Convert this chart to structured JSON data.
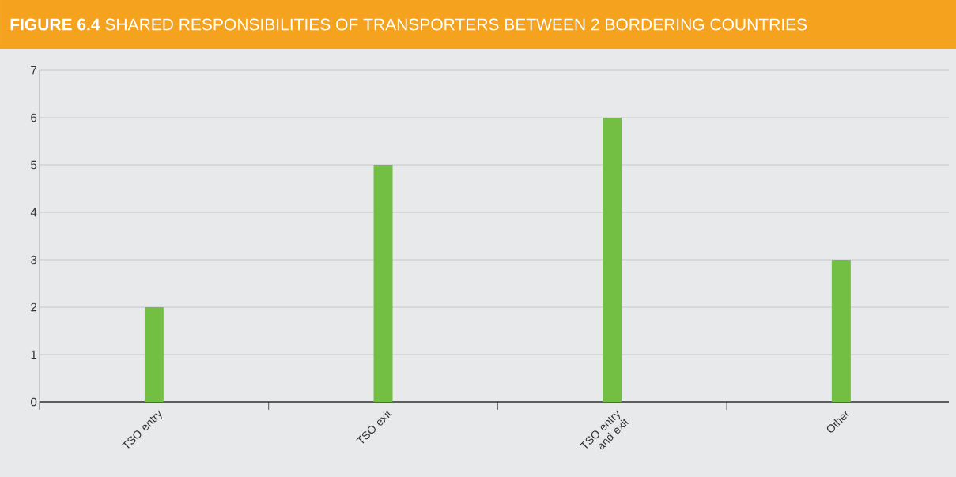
{
  "chart_data": {
    "type": "bar",
    "title": "**FIGURE 6.4** SHARED RESPONSIBILITIES OF TRANSPORTERS BETWEEN 2 BORDERING COUNTRIES",
    "categories": [
      "TSO entry",
      "TSO exit",
      "TSO entry and exit",
      "Other"
    ],
    "values": [
      2,
      5,
      6,
      3
    ],
    "color": "#72bf44",
    "ylim": [
      0,
      7
    ],
    "yticks": [
      0,
      1,
      2,
      3,
      4,
      5,
      6,
      7
    ],
    "grid": "y"
  }
}
